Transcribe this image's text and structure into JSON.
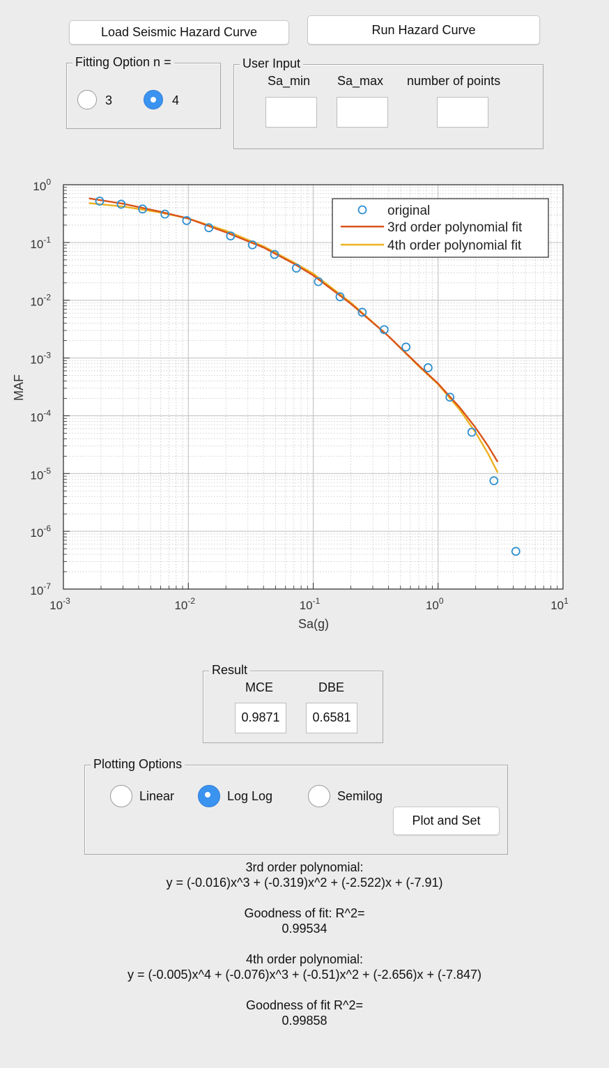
{
  "buttons": {
    "load": "Load Seismic Hazard Curve",
    "run": "Run Hazard Curve",
    "plot_and_set": "Plot and Set"
  },
  "fitting": {
    "title": "Fitting Option n =",
    "options": [
      "3",
      "4"
    ],
    "selected": "4"
  },
  "user_input": {
    "title": "User Input",
    "labels": [
      "Sa_min",
      "Sa_max",
      "number of points"
    ],
    "values": [
      "",
      "",
      ""
    ]
  },
  "result": {
    "title": "Result",
    "mce_label": "MCE",
    "dbe_label": "DBE",
    "mce_value": "0.9871",
    "dbe_value": "0.6581"
  },
  "plotting": {
    "title": "Plotting Options",
    "options": [
      "Linear",
      "Log Log",
      "Semilog"
    ],
    "selected": "Log Log"
  },
  "equations": {
    "third_title": "3rd order polynomial:",
    "third_eq": "y = (-0.016)x^3 + (-0.319)x^2 + (-2.522)x + (-7.91)",
    "third_gof_label": "Goodness of fit: R^2=",
    "third_gof_value": "0.99534",
    "fourth_title": "4th order polynomial:",
    "fourth_eq": "y = (-0.005)x^4 + (-0.076)x^3 + (-0.51)x^2 + (-2.656)x + (-7.847)",
    "fourth_gof_label": "Goodness of fit R^2=",
    "fourth_gof_value": "0.99858"
  },
  "colors": {
    "marker": "#2f8fd0",
    "fit3": "#d95319",
    "fit4": "#edb120",
    "radio_on": "#3b93f0"
  },
  "chart_data": {
    "type": "scatter",
    "xlabel": "Sa(g)",
    "ylabel": "MAF",
    "x_scale": "log",
    "y_scale": "log",
    "xlim": [
      0.001,
      10
    ],
    "ylim": [
      1e-07,
      1
    ],
    "x_ticks": [
      {
        "base": "10",
        "exp": "-3"
      },
      {
        "base": "10",
        "exp": "-2"
      },
      {
        "base": "10",
        "exp": "-1"
      },
      {
        "base": "10",
        "exp": "0"
      },
      {
        "base": "10",
        "exp": "1"
      }
    ],
    "y_ticks": [
      {
        "base": "10",
        "exp": "0"
      },
      {
        "base": "10",
        "exp": "-1"
      },
      {
        "base": "10",
        "exp": "-2"
      },
      {
        "base": "10",
        "exp": "-3"
      },
      {
        "base": "10",
        "exp": "-4"
      },
      {
        "base": "10",
        "exp": "-5"
      },
      {
        "base": "10",
        "exp": "-6"
      },
      {
        "base": "10",
        "exp": "-7"
      }
    ],
    "grid": true,
    "legend_position": "top-right",
    "series": [
      {
        "name": "original",
        "style": "marker",
        "x": [
          0.00195,
          0.0029,
          0.0043,
          0.0065,
          0.0097,
          0.0146,
          0.0218,
          0.0326,
          0.049,
          0.0733,
          0.11,
          0.164,
          0.247,
          0.37,
          0.553,
          0.831,
          1.243,
          1.863,
          2.796,
          4.19
        ],
        "y": [
          0.52,
          0.46,
          0.38,
          0.31,
          0.24,
          0.18,
          0.13,
          0.091,
          0.062,
          0.036,
          0.021,
          0.0115,
          0.0062,
          0.0031,
          0.00155,
          0.00068,
          0.00021,
          5.2e-05,
          7.5e-06,
          4.5e-07
        ]
      },
      {
        "name": "3rd order polynomial fit",
        "style": "line",
        "x": [
          0.0016,
          0.003,
          0.006,
          0.01,
          0.02,
          0.04,
          0.07,
          0.1,
          0.2,
          0.4,
          0.7,
          1.0,
          1.5,
          2.0,
          2.5,
          3.0
        ],
        "y": [
          0.58,
          0.47,
          0.34,
          0.26,
          0.15,
          0.082,
          0.043,
          0.027,
          0.0087,
          0.0024,
          0.00074,
          0.00036,
          0.000137,
          6.17e-05,
          3.04e-05,
          1.59e-05
        ]
      },
      {
        "name": "4th order polynomial fit",
        "style": "line",
        "x": [
          0.0016,
          0.003,
          0.006,
          0.01,
          0.02,
          0.04,
          0.07,
          0.1,
          0.2,
          0.4,
          0.7,
          1.0,
          1.5,
          2.0,
          2.5,
          3.0
        ],
        "y": [
          0.48,
          0.42,
          0.33,
          0.26,
          0.16,
          0.086,
          0.045,
          0.029,
          0.0091,
          0.0024,
          0.00072,
          0.00035,
          0.000125,
          5.1e-05,
          2.25e-05,
          1.04e-05
        ]
      }
    ]
  }
}
